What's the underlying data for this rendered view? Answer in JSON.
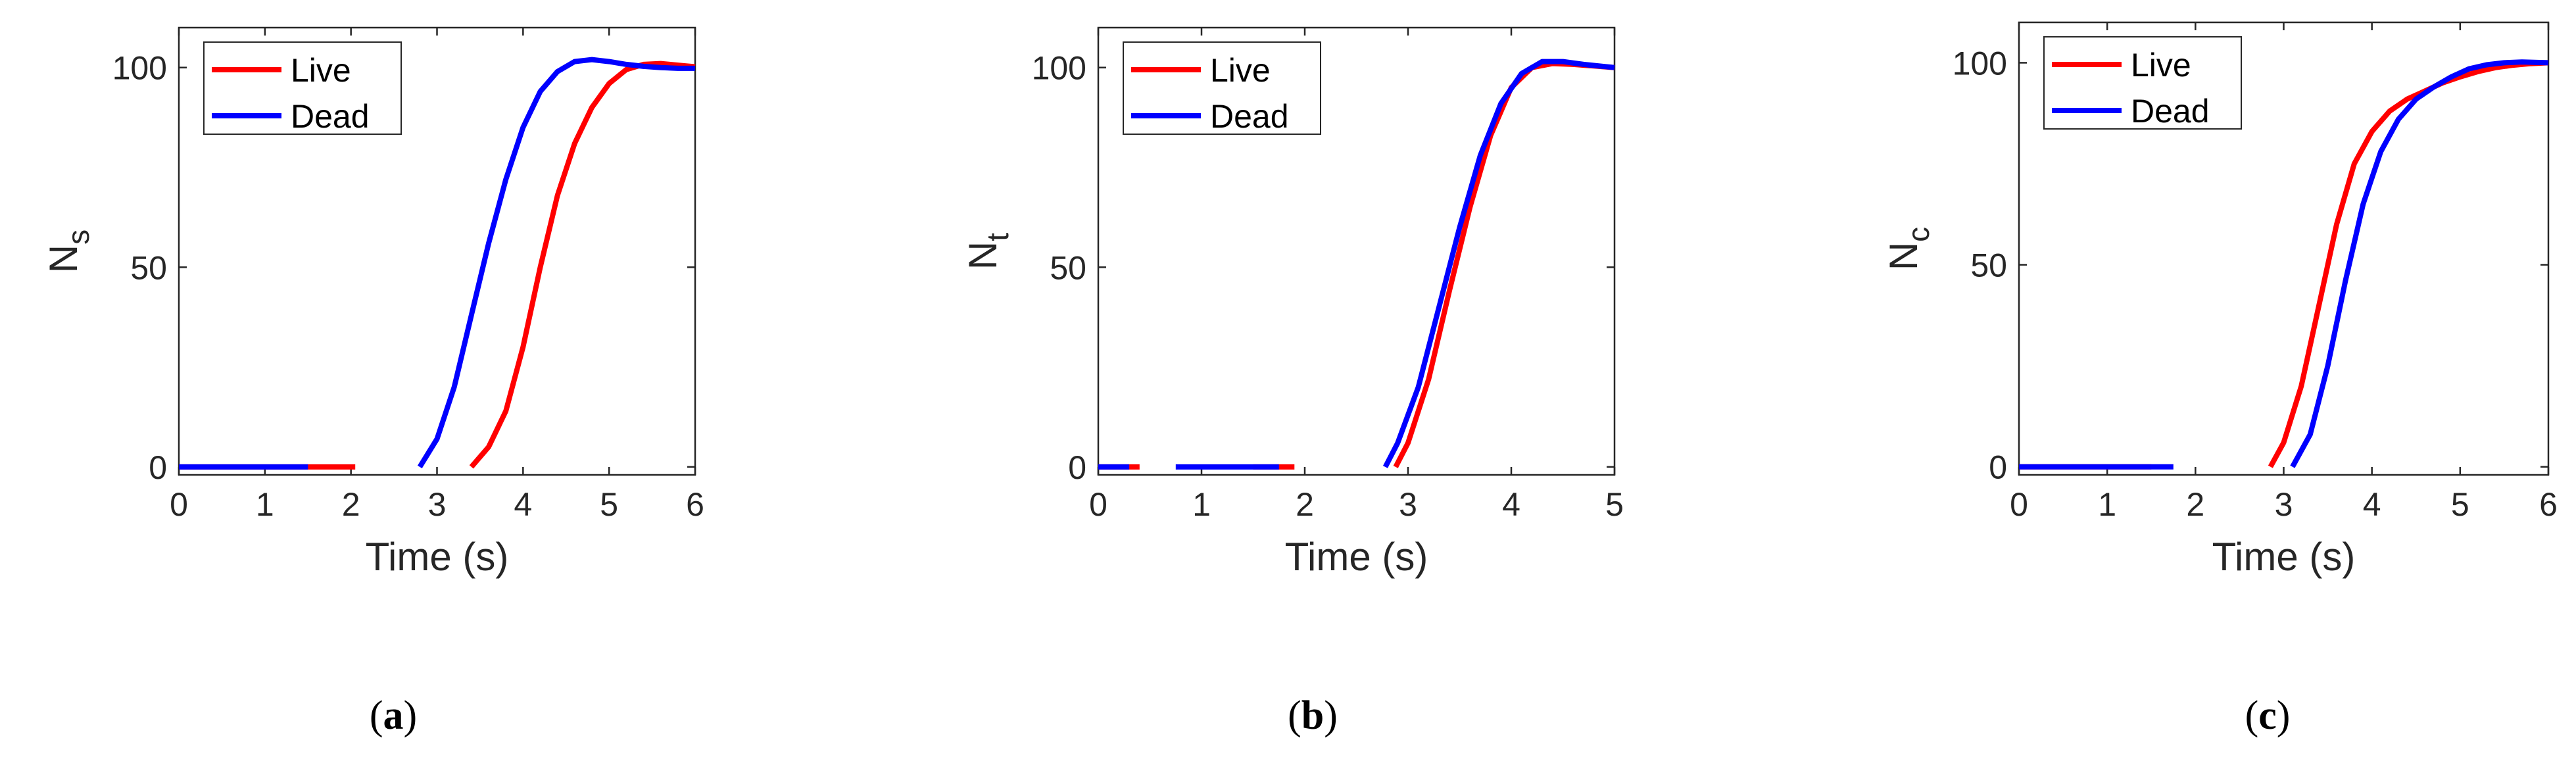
{
  "figure": {
    "panels": [
      {
        "caption_open": "(",
        "caption_letter": "a",
        "caption_close": ")"
      },
      {
        "caption_open": "(",
        "caption_letter": "b",
        "caption_close": ")"
      },
      {
        "caption_open": "(",
        "caption_letter": "c",
        "caption_close": ")"
      }
    ]
  },
  "chart_data": [
    {
      "type": "line",
      "xlabel": "Time (s)",
      "ylabel_main": "N",
      "ylabel_sub": "s",
      "xlim": [
        0,
        6
      ],
      "ylim": [
        -2,
        110
      ],
      "xticks": [
        "0",
        "1",
        "2",
        "3",
        "4",
        "5",
        "6"
      ],
      "xtick_values": [
        0,
        1,
        2,
        3,
        4,
        5,
        6
      ],
      "yticks": [
        "0",
        "50",
        "100"
      ],
      "ytick_values": [
        0,
        50,
        100
      ],
      "grid": false,
      "legend_position": "top-left",
      "series": [
        {
          "name": "Live",
          "color": "#ff0000",
          "segments": [
            {
              "x": [
                0,
                0.5,
                1,
                1.5,
                2.05
              ],
              "y": [
                0,
                0,
                0,
                0,
                0
              ]
            },
            {
              "x": [
                3.4,
                3.6,
                3.8,
                4.0,
                4.2,
                4.4,
                4.6,
                4.8,
                5.0,
                5.2,
                5.4,
                5.6,
                5.8,
                6.0
              ],
              "y": [
                0,
                5,
                14,
                30,
                50,
                68,
                81,
                90,
                96,
                99.5,
                100.8,
                101,
                100.6,
                100.2
              ]
            }
          ]
        },
        {
          "name": "Dead",
          "color": "#0000ff",
          "segments": [
            {
              "x": [
                0,
                0.5,
                1,
                1.5
              ],
              "y": [
                0,
                0,
                0,
                0
              ]
            },
            {
              "x": [
                2.8,
                3.0,
                3.2,
                3.4,
                3.6,
                3.8,
                4.0,
                4.2,
                4.4,
                4.6,
                4.8,
                5.0,
                5.2,
                5.4,
                5.6,
                5.8,
                6.0
              ],
              "y": [
                0,
                7,
                20,
                38,
                56,
                72,
                85,
                94,
                99,
                101.5,
                102,
                101.5,
                100.8,
                100.3,
                100,
                99.8,
                99.8
              ]
            }
          ]
        }
      ]
    },
    {
      "type": "line",
      "xlabel": "Time (s)",
      "ylabel_main": "N",
      "ylabel_sub": "t",
      "xlim": [
        0,
        5
      ],
      "ylim": [
        -2,
        110
      ],
      "xticks": [
        "0",
        "1",
        "2",
        "3",
        "4",
        "5"
      ],
      "xtick_values": [
        0,
        1,
        2,
        3,
        4,
        5
      ],
      "yticks": [
        "0",
        "50",
        "100"
      ],
      "ytick_values": [
        0,
        50,
        100
      ],
      "grid": false,
      "legend_position": "top-left",
      "series": [
        {
          "name": "Live",
          "color": "#ff0000",
          "segments": [
            {
              "x": [
                0,
                0.2,
                0.4
              ],
              "y": [
                0,
                0,
                0
              ]
            },
            {
              "x": [
                1.5,
                1.7,
                1.9
              ],
              "y": [
                0,
                0,
                0
              ]
            },
            {
              "x": [
                2.88,
                3.0,
                3.2,
                3.4,
                3.6,
                3.8,
                4.0,
                4.2,
                4.4,
                4.6,
                4.8,
                5.0
              ],
              "y": [
                0,
                6,
                22,
                44,
                65,
                83,
                95,
                100,
                101,
                100.8,
                100.4,
                100
              ]
            }
          ]
        },
        {
          "name": "Dead",
          "color": "#0000ff",
          "segments": [
            {
              "x": [
                0,
                0.2,
                0.3
              ],
              "y": [
                0,
                0,
                0
              ]
            },
            {
              "x": [
                0.75,
                1.0,
                1.3,
                1.6,
                1.75
              ],
              "y": [
                0,
                0,
                0,
                0,
                0
              ]
            },
            {
              "x": [
                2.78,
                2.9,
                3.1,
                3.3,
                3.5,
                3.7,
                3.9,
                4.1,
                4.3,
                4.5,
                4.7,
                5.0
              ],
              "y": [
                0,
                6,
                20,
                40,
                60,
                78,
                91,
                98.5,
                101.5,
                101.5,
                100.8,
                100
              ]
            }
          ]
        }
      ]
    },
    {
      "type": "line",
      "xlabel": "Time (s)",
      "ylabel_main": "N",
      "ylabel_sub": "c",
      "xlim": [
        0,
        6
      ],
      "ylim": [
        -2,
        110
      ],
      "xticks": [
        "0",
        "1",
        "2",
        "3",
        "4",
        "5",
        "6"
      ],
      "xtick_values": [
        0,
        1,
        2,
        3,
        4,
        5,
        6
      ],
      "yticks": [
        "0",
        "50",
        "100"
      ],
      "ytick_values": [
        0,
        50,
        100
      ],
      "grid": false,
      "legend_position": "top-left",
      "series": [
        {
          "name": "Live",
          "color": "#ff0000",
          "segments": [
            {
              "x": [
                0,
                0.5,
                1.0,
                1.5
              ],
              "y": [
                0,
                0,
                0,
                0
              ]
            },
            {
              "x": [
                2.85,
                3.0,
                3.2,
                3.4,
                3.6,
                3.8,
                4.0,
                4.2,
                4.4,
                4.6,
                4.8,
                5.0,
                5.2,
                5.4,
                5.6,
                5.8,
                6.0
              ],
              "y": [
                0,
                6,
                20,
                40,
                60,
                75,
                83,
                88,
                91,
                93,
                95,
                96.5,
                97.8,
                98.8,
                99.4,
                99.8,
                100
              ]
            }
          ]
        },
        {
          "name": "Dead",
          "color": "#0000ff",
          "segments": [
            {
              "x": [
                0,
                0.5,
                1.0,
                1.5,
                1.75
              ],
              "y": [
                0,
                0,
                0,
                0,
                0
              ]
            },
            {
              "x": [
                3.1,
                3.3,
                3.5,
                3.7,
                3.9,
                4.1,
                4.3,
                4.5,
                4.7,
                4.9,
                5.1,
                5.3,
                5.5,
                5.7,
                6.0
              ],
              "y": [
                0,
                8,
                25,
                46,
                65,
                78,
                86,
                91,
                94,
                96.5,
                98.5,
                99.5,
                100,
                100.2,
                100
              ]
            }
          ]
        }
      ]
    }
  ]
}
